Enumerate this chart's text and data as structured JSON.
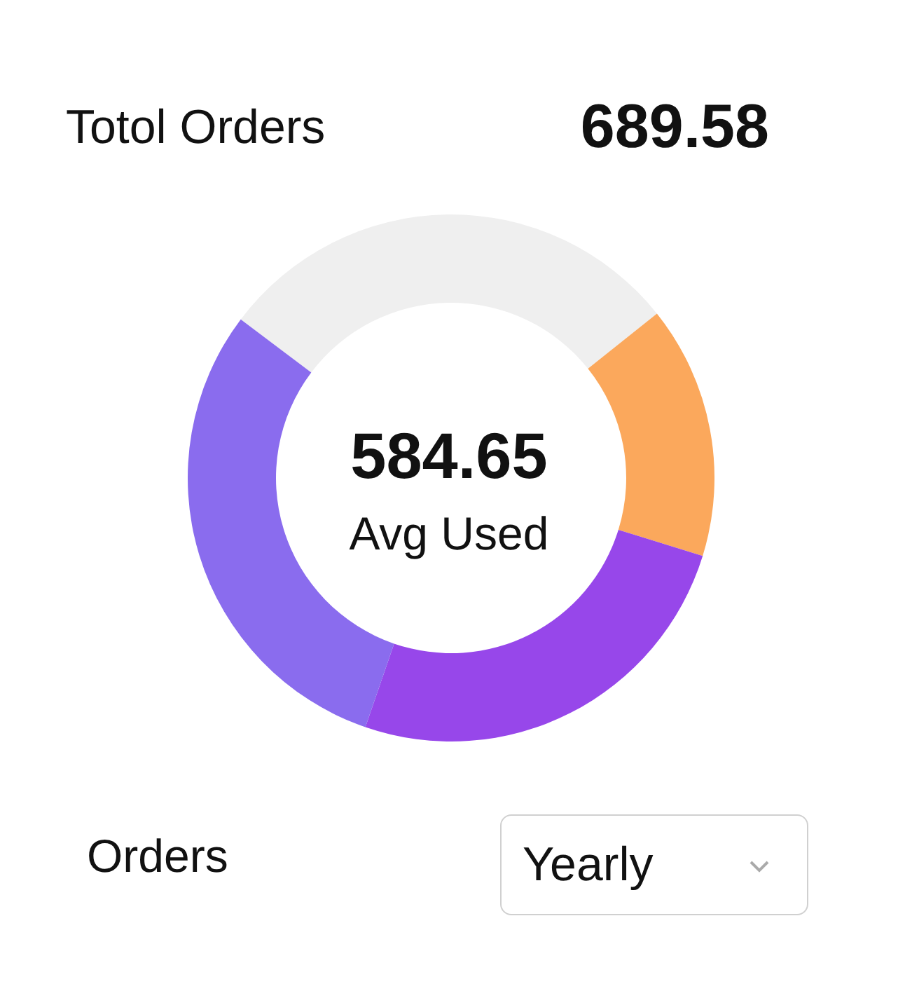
{
  "chart_data": {
    "type": "donut",
    "title": "Totol Orders",
    "categories": [
      null,
      null,
      null,
      null
    ],
    "values": [
      29,
      15.5,
      25.5,
      30
    ],
    "colors": [
      "#efefef",
      "#fba85c",
      "#9747ea",
      "#8a6cee"
    ],
    "annotations": [
      "689.58",
      "584.65",
      "Avg Used",
      "Orders",
      "Yearly"
    ]
  }
}
